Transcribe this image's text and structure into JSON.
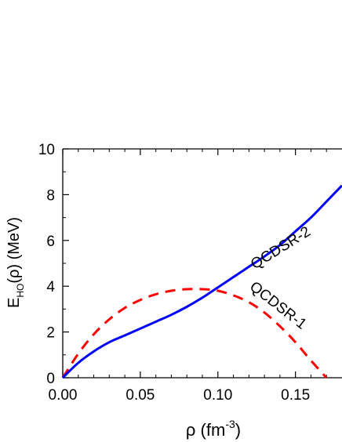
{
  "chart_data": {
    "type": "line",
    "xlabel": {
      "prefix": "ρ (fm",
      "sup": "-3",
      "suffix": ")"
    },
    "ylabel": {
      "main": "E",
      "sub": "HO",
      "rest": "(ρ) (MeV)"
    },
    "xlim": [
      0.0,
      0.18
    ],
    "ylim": [
      0,
      10
    ],
    "x_ticks": [
      0.0,
      0.05,
      0.1,
      0.15
    ],
    "x_tick_labels": [
      "0.00",
      "0.05",
      "0.10",
      "0.15"
    ],
    "y_ticks": [
      0,
      2,
      4,
      6,
      8,
      10
    ],
    "y_tick_labels": [
      "0",
      "2",
      "4",
      "6",
      "8",
      "10"
    ],
    "grid": false,
    "legend": "none",
    "series": [
      {
        "name": "QCDSR-1",
        "color": "#ff0000",
        "dash": "dashed",
        "x": [
          0.0,
          0.01,
          0.02,
          0.03,
          0.04,
          0.05,
          0.06,
          0.07,
          0.08,
          0.09,
          0.1,
          0.11,
          0.12,
          0.13,
          0.14,
          0.15,
          0.16,
          0.17
        ],
        "y": [
          0.0,
          1.05,
          1.9,
          2.55,
          3.05,
          3.4,
          3.65,
          3.8,
          3.87,
          3.87,
          3.8,
          3.6,
          3.3,
          2.85,
          2.25,
          1.55,
          0.75,
          0.0
        ]
      },
      {
        "name": "QCDSR-2",
        "color": "#0000ff",
        "dash": "solid",
        "x": [
          0.0,
          0.01,
          0.02,
          0.03,
          0.04,
          0.05,
          0.06,
          0.07,
          0.08,
          0.09,
          0.1,
          0.11,
          0.12,
          0.13,
          0.14,
          0.15,
          0.16,
          0.17,
          0.18
        ],
        "y": [
          0.0,
          0.65,
          1.15,
          1.55,
          1.85,
          2.15,
          2.45,
          2.75,
          3.1,
          3.5,
          3.95,
          4.4,
          4.85,
          5.3,
          5.8,
          6.4,
          7.0,
          7.7,
          8.4
        ]
      }
    ],
    "annotations": [
      {
        "text": "QCDSR-2",
        "x": 0.142,
        "y": 5.5,
        "angle": -32
      },
      {
        "text": "QCDSR-1",
        "x": 0.137,
        "y": 3.0,
        "angle": 38
      }
    ]
  }
}
